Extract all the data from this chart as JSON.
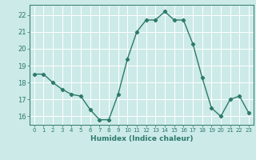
{
  "x": [
    0,
    1,
    2,
    3,
    4,
    5,
    6,
    7,
    8,
    9,
    10,
    11,
    12,
    13,
    14,
    15,
    16,
    17,
    18,
    19,
    20,
    21,
    22,
    23
  ],
  "y": [
    18.5,
    18.5,
    18.0,
    17.6,
    17.3,
    17.2,
    16.4,
    15.8,
    15.8,
    17.3,
    19.4,
    21.0,
    21.7,
    21.7,
    22.2,
    21.7,
    21.7,
    20.3,
    18.3,
    16.5,
    16.0,
    17.0,
    17.2,
    16.2
  ],
  "xlabel": "Humidex (Indice chaleur)",
  "ylim": [
    15.5,
    22.6
  ],
  "xlim": [
    -0.5,
    23.5
  ],
  "yticks": [
    16,
    17,
    18,
    19,
    20,
    21,
    22
  ],
  "xticks": [
    0,
    1,
    2,
    3,
    4,
    5,
    6,
    7,
    8,
    9,
    10,
    11,
    12,
    13,
    14,
    15,
    16,
    17,
    18,
    19,
    20,
    21,
    22,
    23
  ],
  "line_color": "#2d7a6a",
  "marker": "D",
  "marker_size": 2.2,
  "bg_color": "#cceae8",
  "grid_color": "#ffffff",
  "tick_color": "#2d7a6a",
  "label_color": "#2d7a6a",
  "line_width": 1.0
}
